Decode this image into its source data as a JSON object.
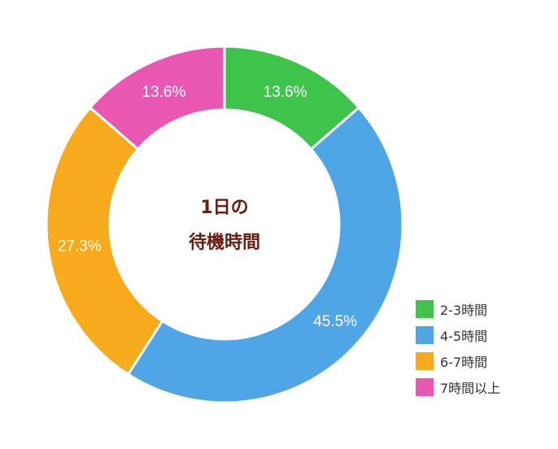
{
  "chart_data": {
    "type": "pie",
    "variant": "donut",
    "center_title_lines": [
      "1日の",
      "待機時間"
    ],
    "categories": [
      "2-3時間",
      "4-5時間",
      "6-7時間",
      "7時間以上"
    ],
    "values": [
      13.6,
      45.5,
      27.3,
      13.6
    ],
    "data_labels": [
      "13.6%",
      "45.5%",
      "27.3%",
      "13.6%"
    ],
    "colors": [
      "#3ec34b",
      "#4fa6e6",
      "#f7ab1c",
      "#ea57b2"
    ],
    "legend_position": "bottom-right"
  }
}
